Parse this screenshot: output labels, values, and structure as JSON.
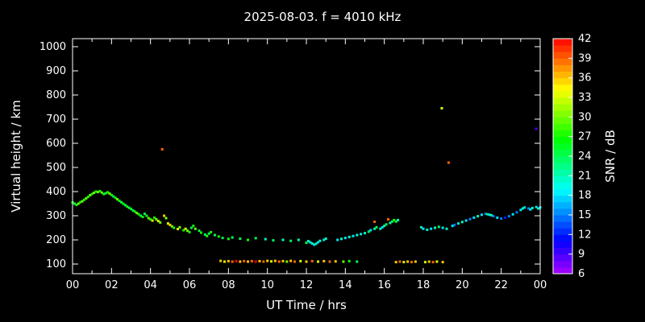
{
  "title": "2025-08-03. f = 4010 kHz",
  "colors": {
    "background": "#000000",
    "text": "#ffffff",
    "frame": "#ffffff"
  },
  "axes": {
    "x_label": "UT Time / hrs",
    "y_label": "Virtual height / km",
    "x_ticks": [
      "00",
      "02",
      "04",
      "06",
      "08",
      "10",
      "12",
      "14",
      "16",
      "18",
      "20",
      "22",
      "00"
    ],
    "y_ticks": [
      100,
      200,
      300,
      400,
      500,
      600,
      700,
      800,
      900,
      1000
    ]
  },
  "colorbar": {
    "label": "SNR / dB",
    "ticks": [
      6,
      9,
      12,
      15,
      18,
      21,
      24,
      27,
      30,
      33,
      36,
      39,
      42
    ],
    "min": 6,
    "max": 42
  },
  "chart_data": {
    "type": "scatter",
    "title": "2025-08-03. f = 4010 kHz",
    "xlabel": "UT Time / hrs",
    "ylabel": "Virtual height / km",
    "colorbar_label": "SNR / dB",
    "xlim": [
      0,
      24
    ],
    "ylim": [
      100,
      1000
    ],
    "snr_range": [
      6,
      42
    ],
    "grid": false,
    "point_format": [
      "ut_hours",
      "virtual_height_km",
      "snr_db"
    ],
    "points": [
      [
        0.0,
        355,
        27
      ],
      [
        0.1,
        350,
        24
      ],
      [
        0.2,
        345,
        27
      ],
      [
        0.3,
        350,
        30
      ],
      [
        0.4,
        356,
        27
      ],
      [
        0.5,
        360,
        30
      ],
      [
        0.6,
        366,
        27
      ],
      [
        0.7,
        372,
        30
      ],
      [
        0.8,
        378,
        27
      ],
      [
        0.9,
        385,
        30
      ],
      [
        1.0,
        390,
        27
      ],
      [
        1.1,
        395,
        30
      ],
      [
        1.2,
        400,
        27
      ],
      [
        1.3,
        398,
        30
      ],
      [
        1.4,
        402,
        27
      ],
      [
        1.5,
        396,
        30
      ],
      [
        1.6,
        390,
        27
      ],
      [
        1.7,
        393,
        24
      ],
      [
        1.8,
        397,
        27
      ],
      [
        1.9,
        392,
        30
      ],
      [
        2.0,
        386,
        27
      ],
      [
        2.1,
        380,
        24
      ],
      [
        2.2,
        374,
        27
      ],
      [
        2.3,
        368,
        30
      ],
      [
        2.4,
        362,
        27
      ],
      [
        2.5,
        356,
        24
      ],
      [
        2.6,
        350,
        27
      ],
      [
        2.7,
        344,
        24
      ],
      [
        2.8,
        338,
        27
      ],
      [
        2.9,
        333,
        24
      ],
      [
        3.0,
        328,
        27
      ],
      [
        3.1,
        322,
        24
      ],
      [
        3.2,
        317,
        27
      ],
      [
        3.3,
        311,
        30
      ],
      [
        3.4,
        306,
        27
      ],
      [
        3.5,
        300,
        24
      ],
      [
        3.6,
        295,
        27
      ],
      [
        3.7,
        308,
        24
      ],
      [
        3.8,
        300,
        27
      ],
      [
        3.9,
        290,
        30
      ],
      [
        4.0,
        285,
        27
      ],
      [
        4.1,
        280,
        33
      ],
      [
        4.2,
        292,
        27
      ],
      [
        4.3,
        285,
        30
      ],
      [
        4.4,
        278,
        33
      ],
      [
        4.5,
        272,
        30
      ],
      [
        4.6,
        575,
        39
      ],
      [
        4.7,
        300,
        36
      ],
      [
        4.8,
        290,
        30
      ],
      [
        4.9,
        268,
        33
      ],
      [
        5.0,
        262,
        36
      ],
      [
        5.1,
        256,
        30
      ],
      [
        5.2,
        250,
        27
      ],
      [
        5.4,
        245,
        33
      ],
      [
        5.5,
        252,
        30
      ],
      [
        5.7,
        240,
        27
      ],
      [
        5.8,
        246,
        33
      ],
      [
        5.9,
        238,
        30
      ],
      [
        6.0,
        232,
        27
      ],
      [
        6.1,
        250,
        24
      ],
      [
        6.2,
        258,
        27
      ],
      [
        6.3,
        246,
        30
      ],
      [
        6.5,
        238,
        24
      ],
      [
        6.6,
        230,
        27
      ],
      [
        6.8,
        222,
        24
      ],
      [
        6.9,
        216,
        27
      ],
      [
        7.0,
        226,
        24
      ],
      [
        7.1,
        232,
        27
      ],
      [
        7.3,
        220,
        24
      ],
      [
        7.5,
        214,
        27
      ],
      [
        7.7,
        208,
        24
      ],
      [
        8.0,
        204,
        27
      ],
      [
        8.2,
        210,
        24
      ],
      [
        7.6,
        113,
        36
      ],
      [
        7.8,
        110,
        33
      ],
      [
        8.0,
        112,
        36
      ],
      [
        8.2,
        110,
        39
      ],
      [
        8.4,
        112,
        42
      ],
      [
        8.6,
        110,
        36
      ],
      [
        8.8,
        112,
        39
      ],
      [
        9.0,
        110,
        36
      ],
      [
        9.2,
        112,
        39
      ],
      [
        9.4,
        110,
        42
      ],
      [
        9.6,
        112,
        36
      ],
      [
        9.8,
        110,
        39
      ],
      [
        10.0,
        113,
        36
      ],
      [
        10.2,
        111,
        33
      ],
      [
        10.4,
        113,
        36
      ],
      [
        10.6,
        110,
        39
      ],
      [
        10.8,
        112,
        36
      ],
      [
        11.0,
        110,
        30
      ],
      [
        11.2,
        113,
        36
      ],
      [
        11.4,
        110,
        39
      ],
      [
        11.7,
        112,
        33
      ],
      [
        12.0,
        110,
        36
      ],
      [
        12.3,
        112,
        39
      ],
      [
        12.6,
        110,
        33
      ],
      [
        12.9,
        112,
        36
      ],
      [
        13.2,
        110,
        39
      ],
      [
        13.5,
        111,
        36
      ],
      [
        13.9,
        110,
        30
      ],
      [
        14.2,
        112,
        27
      ],
      [
        14.6,
        110,
        24
      ],
      [
        8.6,
        205,
        24
      ],
      [
        9.0,
        200,
        27
      ],
      [
        9.4,
        207,
        24
      ],
      [
        9.9,
        203,
        21
      ],
      [
        10.3,
        198,
        24
      ],
      [
        10.8,
        200,
        21
      ],
      [
        11.2,
        196,
        24
      ],
      [
        11.6,
        200,
        21
      ],
      [
        12.0,
        188,
        24
      ],
      [
        12.1,
        195,
        21
      ],
      [
        12.2,
        190,
        18
      ],
      [
        12.3,
        185,
        21
      ],
      [
        12.4,
        180,
        18
      ],
      [
        12.5,
        184,
        21
      ],
      [
        12.6,
        190,
        18
      ],
      [
        12.7,
        196,
        21
      ],
      [
        12.9,
        200,
        18
      ],
      [
        13.0,
        205,
        21
      ],
      [
        13.6,
        200,
        18
      ],
      [
        13.8,
        204,
        21
      ],
      [
        14.0,
        208,
        18
      ],
      [
        14.2,
        212,
        21
      ],
      [
        14.4,
        216,
        18
      ],
      [
        14.6,
        220,
        21
      ],
      [
        14.8,
        224,
        18
      ],
      [
        15.0,
        228,
        21
      ],
      [
        15.2,
        234,
        24
      ],
      [
        15.3,
        240,
        18
      ],
      [
        15.5,
        246,
        21
      ],
      [
        15.5,
        275,
        39
      ],
      [
        15.6,
        252,
        24
      ],
      [
        15.8,
        246,
        21
      ],
      [
        15.9,
        252,
        18
      ],
      [
        16.0,
        258,
        21
      ],
      [
        16.1,
        264,
        24
      ],
      [
        16.2,
        285,
        39
      ],
      [
        16.3,
        270,
        21
      ],
      [
        16.4,
        276,
        24
      ],
      [
        16.5,
        282,
        27
      ],
      [
        16.6,
        276,
        24
      ],
      [
        16.7,
        282,
        21
      ],
      [
        16.6,
        108,
        36
      ],
      [
        16.8,
        110,
        39
      ],
      [
        17.0,
        108,
        33
      ],
      [
        17.2,
        110,
        36
      ],
      [
        17.4,
        108,
        39
      ],
      [
        17.6,
        110,
        36
      ],
      [
        18.1,
        108,
        33
      ],
      [
        18.3,
        110,
        36
      ],
      [
        18.5,
        108,
        39
      ],
      [
        18.7,
        110,
        33
      ],
      [
        19.0,
        108,
        36
      ],
      [
        17.9,
        252,
        21
      ],
      [
        18.0,
        246,
        18
      ],
      [
        18.2,
        242,
        21
      ],
      [
        18.4,
        246,
        18
      ],
      [
        18.6,
        250,
        21
      ],
      [
        18.8,
        254,
        24
      ],
      [
        19.0,
        250,
        18
      ],
      [
        19.2,
        246,
        21
      ],
      [
        18.95,
        745,
        33
      ],
      [
        19.3,
        520,
        39
      ],
      [
        19.5,
        258,
        18
      ],
      [
        19.6,
        262,
        15
      ],
      [
        19.8,
        268,
        18
      ],
      [
        20.0,
        274,
        21
      ],
      [
        20.2,
        280,
        18
      ],
      [
        20.4,
        286,
        15
      ],
      [
        20.6,
        292,
        18
      ],
      [
        20.8,
        298,
        21
      ],
      [
        21.0,
        304,
        18
      ],
      [
        21.2,
        308,
        15
      ],
      [
        21.3,
        306,
        24
      ],
      [
        21.4,
        304,
        18
      ],
      [
        21.5,
        302,
        21
      ],
      [
        21.6,
        298,
        15
      ],
      [
        21.8,
        292,
        18
      ],
      [
        22.0,
        288,
        15
      ],
      [
        22.2,
        292,
        12
      ],
      [
        22.4,
        298,
        15
      ],
      [
        22.6,
        306,
        18
      ],
      [
        22.8,
        314,
        15
      ],
      [
        23.0,
        324,
        18
      ],
      [
        23.1,
        330,
        21
      ],
      [
        23.2,
        334,
        18
      ],
      [
        23.4,
        330,
        15
      ],
      [
        23.5,
        326,
        18
      ],
      [
        23.6,
        332,
        21
      ],
      [
        23.8,
        660,
        9
      ],
      [
        23.8,
        336,
        18
      ],
      [
        23.9,
        330,
        21
      ],
      [
        24.0,
        334,
        18
      ]
    ]
  }
}
